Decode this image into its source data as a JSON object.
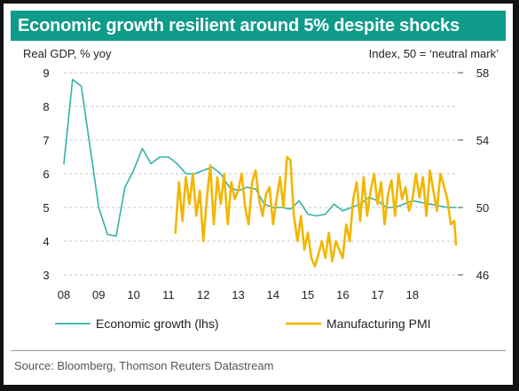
{
  "title": "Economic growth resilient around 5% despite shocks",
  "source": "Source: Bloomberg, Thomson Reuters Datastream",
  "chart_data": {
    "type": "line",
    "left_axis_label": "Real GDP, % yoy",
    "right_axis_label": "Index, 50 = ‘neutral mark’",
    "x_tick_labels": [
      "08",
      "09",
      "10",
      "11",
      "12",
      "13",
      "14",
      "15",
      "16",
      "17",
      "18"
    ],
    "xlim": [
      2008.0,
      2019.3
    ],
    "ylim_left": [
      3,
      9
    ],
    "ylim_right": [
      46,
      58
    ],
    "left_ticks": [
      3,
      4,
      5,
      6,
      7,
      8,
      9
    ],
    "right_ticks": [
      46,
      50,
      54,
      58
    ],
    "colors": {
      "growth": "#33b3a6",
      "pmi": "#f2b600",
      "title_bg": "#0e9b8a"
    },
    "series": [
      {
        "name": "Economic growth (lhs)",
        "axis": "left",
        "x": [
          2008.0,
          2008.25,
          2008.5,
          2008.75,
          2009.0,
          2009.25,
          2009.5,
          2009.75,
          2010.0,
          2010.25,
          2010.5,
          2010.75,
          2011.0,
          2011.25,
          2011.5,
          2011.75,
          2012.0,
          2012.25,
          2012.5,
          2012.75,
          2013.0,
          2013.25,
          2013.5,
          2013.75,
          2014.0,
          2014.25,
          2014.5,
          2014.75,
          2015.0,
          2015.25,
          2015.5,
          2015.75,
          2016.0,
          2016.25,
          2016.5,
          2016.75,
          2017.0,
          2017.25,
          2017.5,
          2017.75,
          2018.0,
          2018.25,
          2018.5,
          2018.75,
          2019.0,
          2019.25
        ],
        "values": [
          6.3,
          8.8,
          8.6,
          6.8,
          5.0,
          4.2,
          4.15,
          5.6,
          6.1,
          6.75,
          6.3,
          6.5,
          6.5,
          6.3,
          6.0,
          6.0,
          6.1,
          6.2,
          6.0,
          5.6,
          5.5,
          5.6,
          5.55,
          5.1,
          5.0,
          5.0,
          4.95,
          5.2,
          4.8,
          4.75,
          4.8,
          5.1,
          4.9,
          5.0,
          5.1,
          5.3,
          5.2,
          5.0,
          5.0,
          5.1,
          5.2,
          5.15,
          5.1,
          5.05,
          5.0,
          5.0
        ]
      },
      {
        "name": "Manufacturing PMI",
        "axis": "right",
        "x": [
          2011.2,
          2011.3,
          2011.4,
          2011.5,
          2011.6,
          2011.7,
          2011.8,
          2011.9,
          2012.0,
          2012.1,
          2012.2,
          2012.3,
          2012.4,
          2012.5,
          2012.6,
          2012.7,
          2012.8,
          2012.9,
          2013.0,
          2013.1,
          2013.2,
          2013.3,
          2013.4,
          2013.5,
          2013.6,
          2013.7,
          2013.8,
          2013.9,
          2014.0,
          2014.1,
          2014.2,
          2014.3,
          2014.4,
          2014.5,
          2014.6,
          2014.7,
          2014.8,
          2014.9,
          2015.0,
          2015.1,
          2015.2,
          2015.3,
          2015.4,
          2015.5,
          2015.6,
          2015.7,
          2015.8,
          2015.9,
          2016.0,
          2016.1,
          2016.2,
          2016.3,
          2016.4,
          2016.5,
          2016.6,
          2016.7,
          2016.8,
          2016.9,
          2017.0,
          2017.1,
          2017.2,
          2017.3,
          2017.4,
          2017.5,
          2017.6,
          2017.7,
          2017.8,
          2017.9,
          2018.0,
          2018.1,
          2018.2,
          2018.3,
          2018.4,
          2018.5,
          2018.6,
          2018.7,
          2018.8,
          2018.9,
          2019.0,
          2019.1,
          2019.2,
          2019.25
        ],
        "values": [
          48.5,
          51.5,
          49.2,
          51.8,
          50.2,
          52.0,
          49.5,
          51.0,
          48.0,
          50.5,
          52.5,
          49.0,
          51.8,
          50.2,
          52.0,
          49.0,
          51.5,
          50.5,
          51.0,
          52.0,
          50.0,
          49.0,
          51.5,
          52.2,
          50.5,
          49.5,
          50.8,
          51.2,
          49.0,
          50.5,
          51.8,
          50.0,
          53.0,
          52.8,
          49.5,
          48.0,
          49.5,
          47.5,
          48.5,
          47.0,
          46.5,
          47.2,
          48.0,
          47.0,
          48.5,
          46.8,
          48.0,
          47.5,
          47.0,
          49.0,
          48.0,
          50.5,
          51.5,
          49.2,
          51.8,
          49.5,
          51.0,
          52.0,
          50.2,
          51.5,
          49.0,
          50.8,
          51.6,
          49.5,
          52.0,
          50.5,
          51.2,
          49.8,
          50.5,
          52.0,
          50.6,
          51.8,
          49.5,
          52.2,
          51.0,
          49.8,
          52.0,
          51.3,
          50.5,
          49.0,
          49.2,
          47.8
        ]
      }
    ]
  }
}
